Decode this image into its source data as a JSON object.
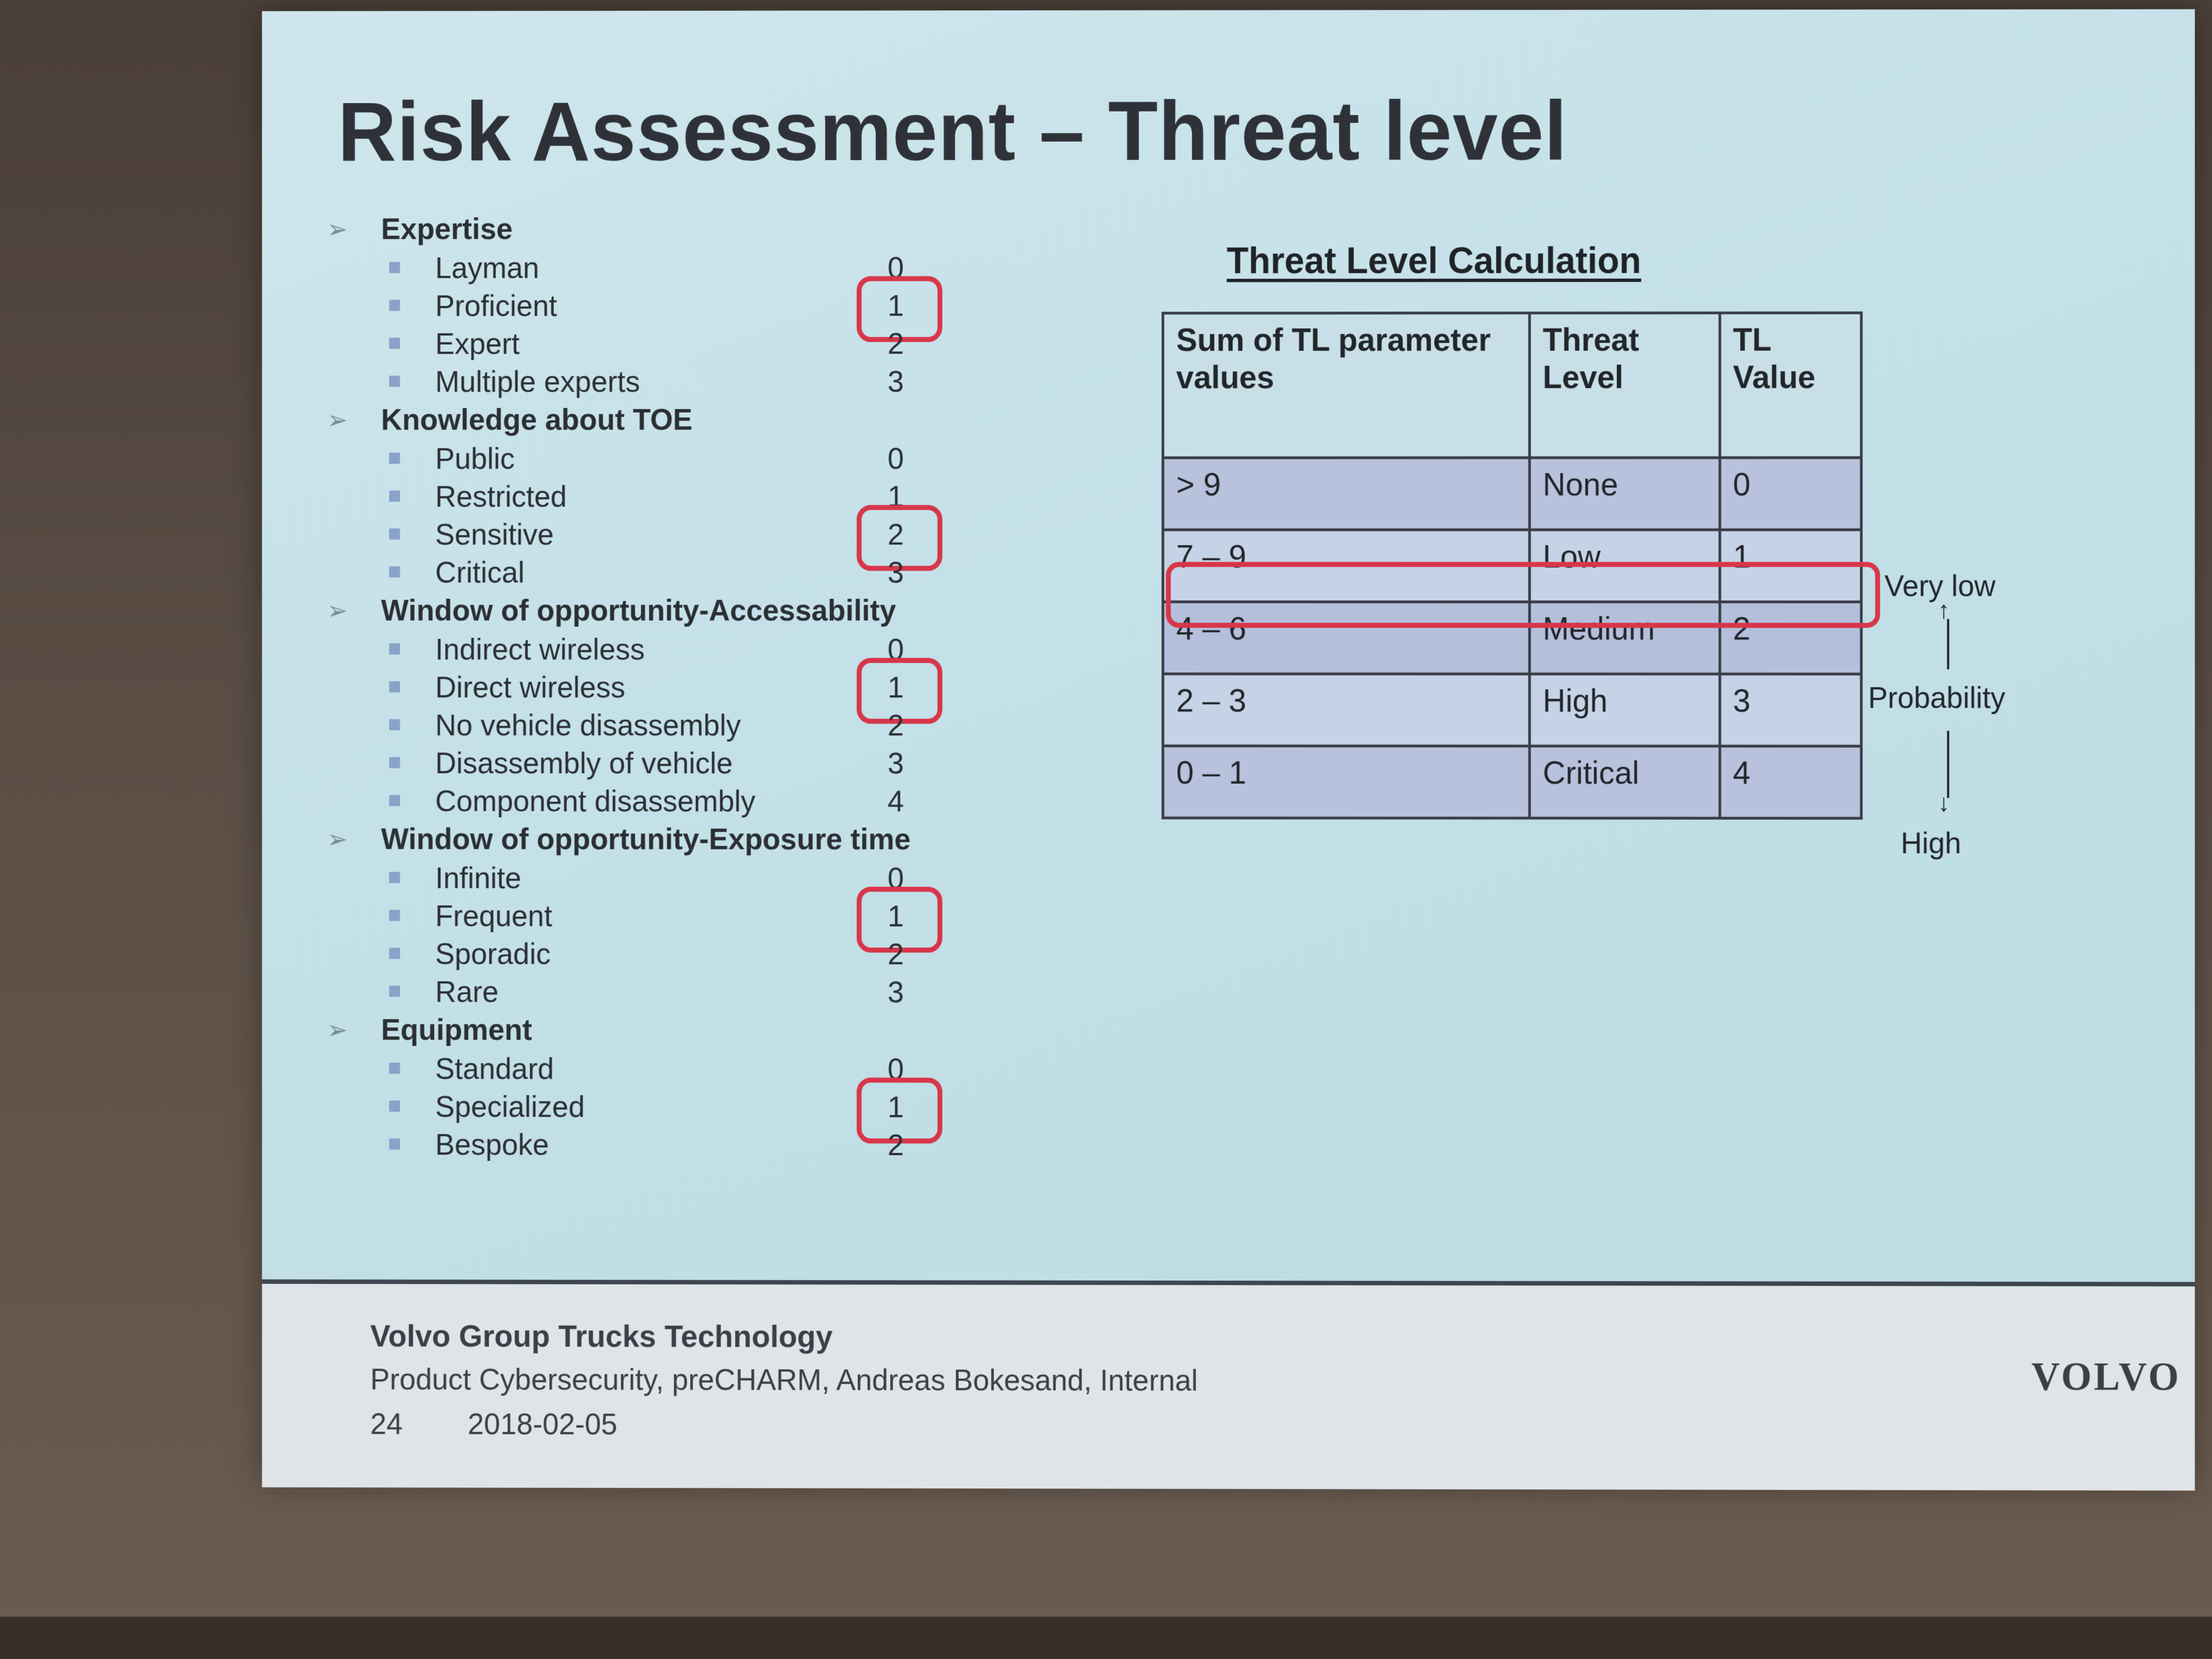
{
  "slide": {
    "title": "Risk Assessment – Threat level",
    "sections": [
      {
        "name": "Expertise",
        "items": [
          {
            "label": "Layman",
            "value": "0",
            "selected": false
          },
          {
            "label": "Proficient",
            "value": "1",
            "selected": true
          },
          {
            "label": "Expert",
            "value": "2",
            "selected": false
          },
          {
            "label": "Multiple experts",
            "value": "3",
            "selected": false
          }
        ]
      },
      {
        "name": "Knowledge about TOE",
        "items": [
          {
            "label": "Public",
            "value": "0",
            "selected": false
          },
          {
            "label": "Restricted",
            "value": "1",
            "selected": false
          },
          {
            "label": "Sensitive",
            "value": "2",
            "selected": true
          },
          {
            "label": "Critical",
            "value": "3",
            "selected": false
          }
        ]
      },
      {
        "name": "Window of opportunity-Accessability",
        "items": [
          {
            "label": "Indirect wireless",
            "value": "0",
            "selected": false
          },
          {
            "label": "Direct wireless",
            "value": "1",
            "selected": true
          },
          {
            "label": "No vehicle disassembly",
            "value": "2",
            "selected": false
          },
          {
            "label": "Disassembly of vehicle",
            "value": "3",
            "selected": false
          },
          {
            "label": "Component disassembly",
            "value": "4",
            "selected": false
          }
        ]
      },
      {
        "name": "Window of opportunity-Exposure time",
        "items": [
          {
            "label": "Infinite",
            "value": "0",
            "selected": false
          },
          {
            "label": "Frequent",
            "value": "1",
            "selected": true
          },
          {
            "label": "Sporadic",
            "value": "2",
            "selected": false
          },
          {
            "label": "Rare",
            "value": "3",
            "selected": false
          }
        ]
      },
      {
        "name": "Equipment",
        "items": [
          {
            "label": "Standard",
            "value": "0",
            "selected": false
          },
          {
            "label": "Specialized",
            "value": "1",
            "selected": true
          },
          {
            "label": "Bespoke",
            "value": "2",
            "selected": false
          }
        ]
      }
    ],
    "table": {
      "title": "Threat Level Calculation",
      "headers": [
        "Sum of TL parameter values",
        "Threat Level",
        "TL Value"
      ],
      "rows": [
        [
          "> 9",
          "None",
          "0"
        ],
        [
          "7 – 9",
          "Low",
          "1"
        ],
        [
          "4 – 6",
          "Medium",
          "2"
        ],
        [
          "2 – 3",
          "High",
          "3"
        ],
        [
          "0 – 1",
          "Critical",
          "4"
        ]
      ],
      "highlighted_row": 2
    },
    "side_scale": {
      "top": "Very low",
      "middle": "Probability",
      "bottom": "High"
    },
    "footer": {
      "org": "Volvo Group Trucks Technology",
      "subtitle": "Product Cybersecurity, preCHARM,  Andreas Bokesand, Internal",
      "page": "24",
      "date": "2018-02-05",
      "logo": "VOLVO"
    },
    "colors": {
      "slide_bg": "#c4e0e8",
      "highlight": "#d8364a",
      "text": "#2b2f34"
    }
  }
}
